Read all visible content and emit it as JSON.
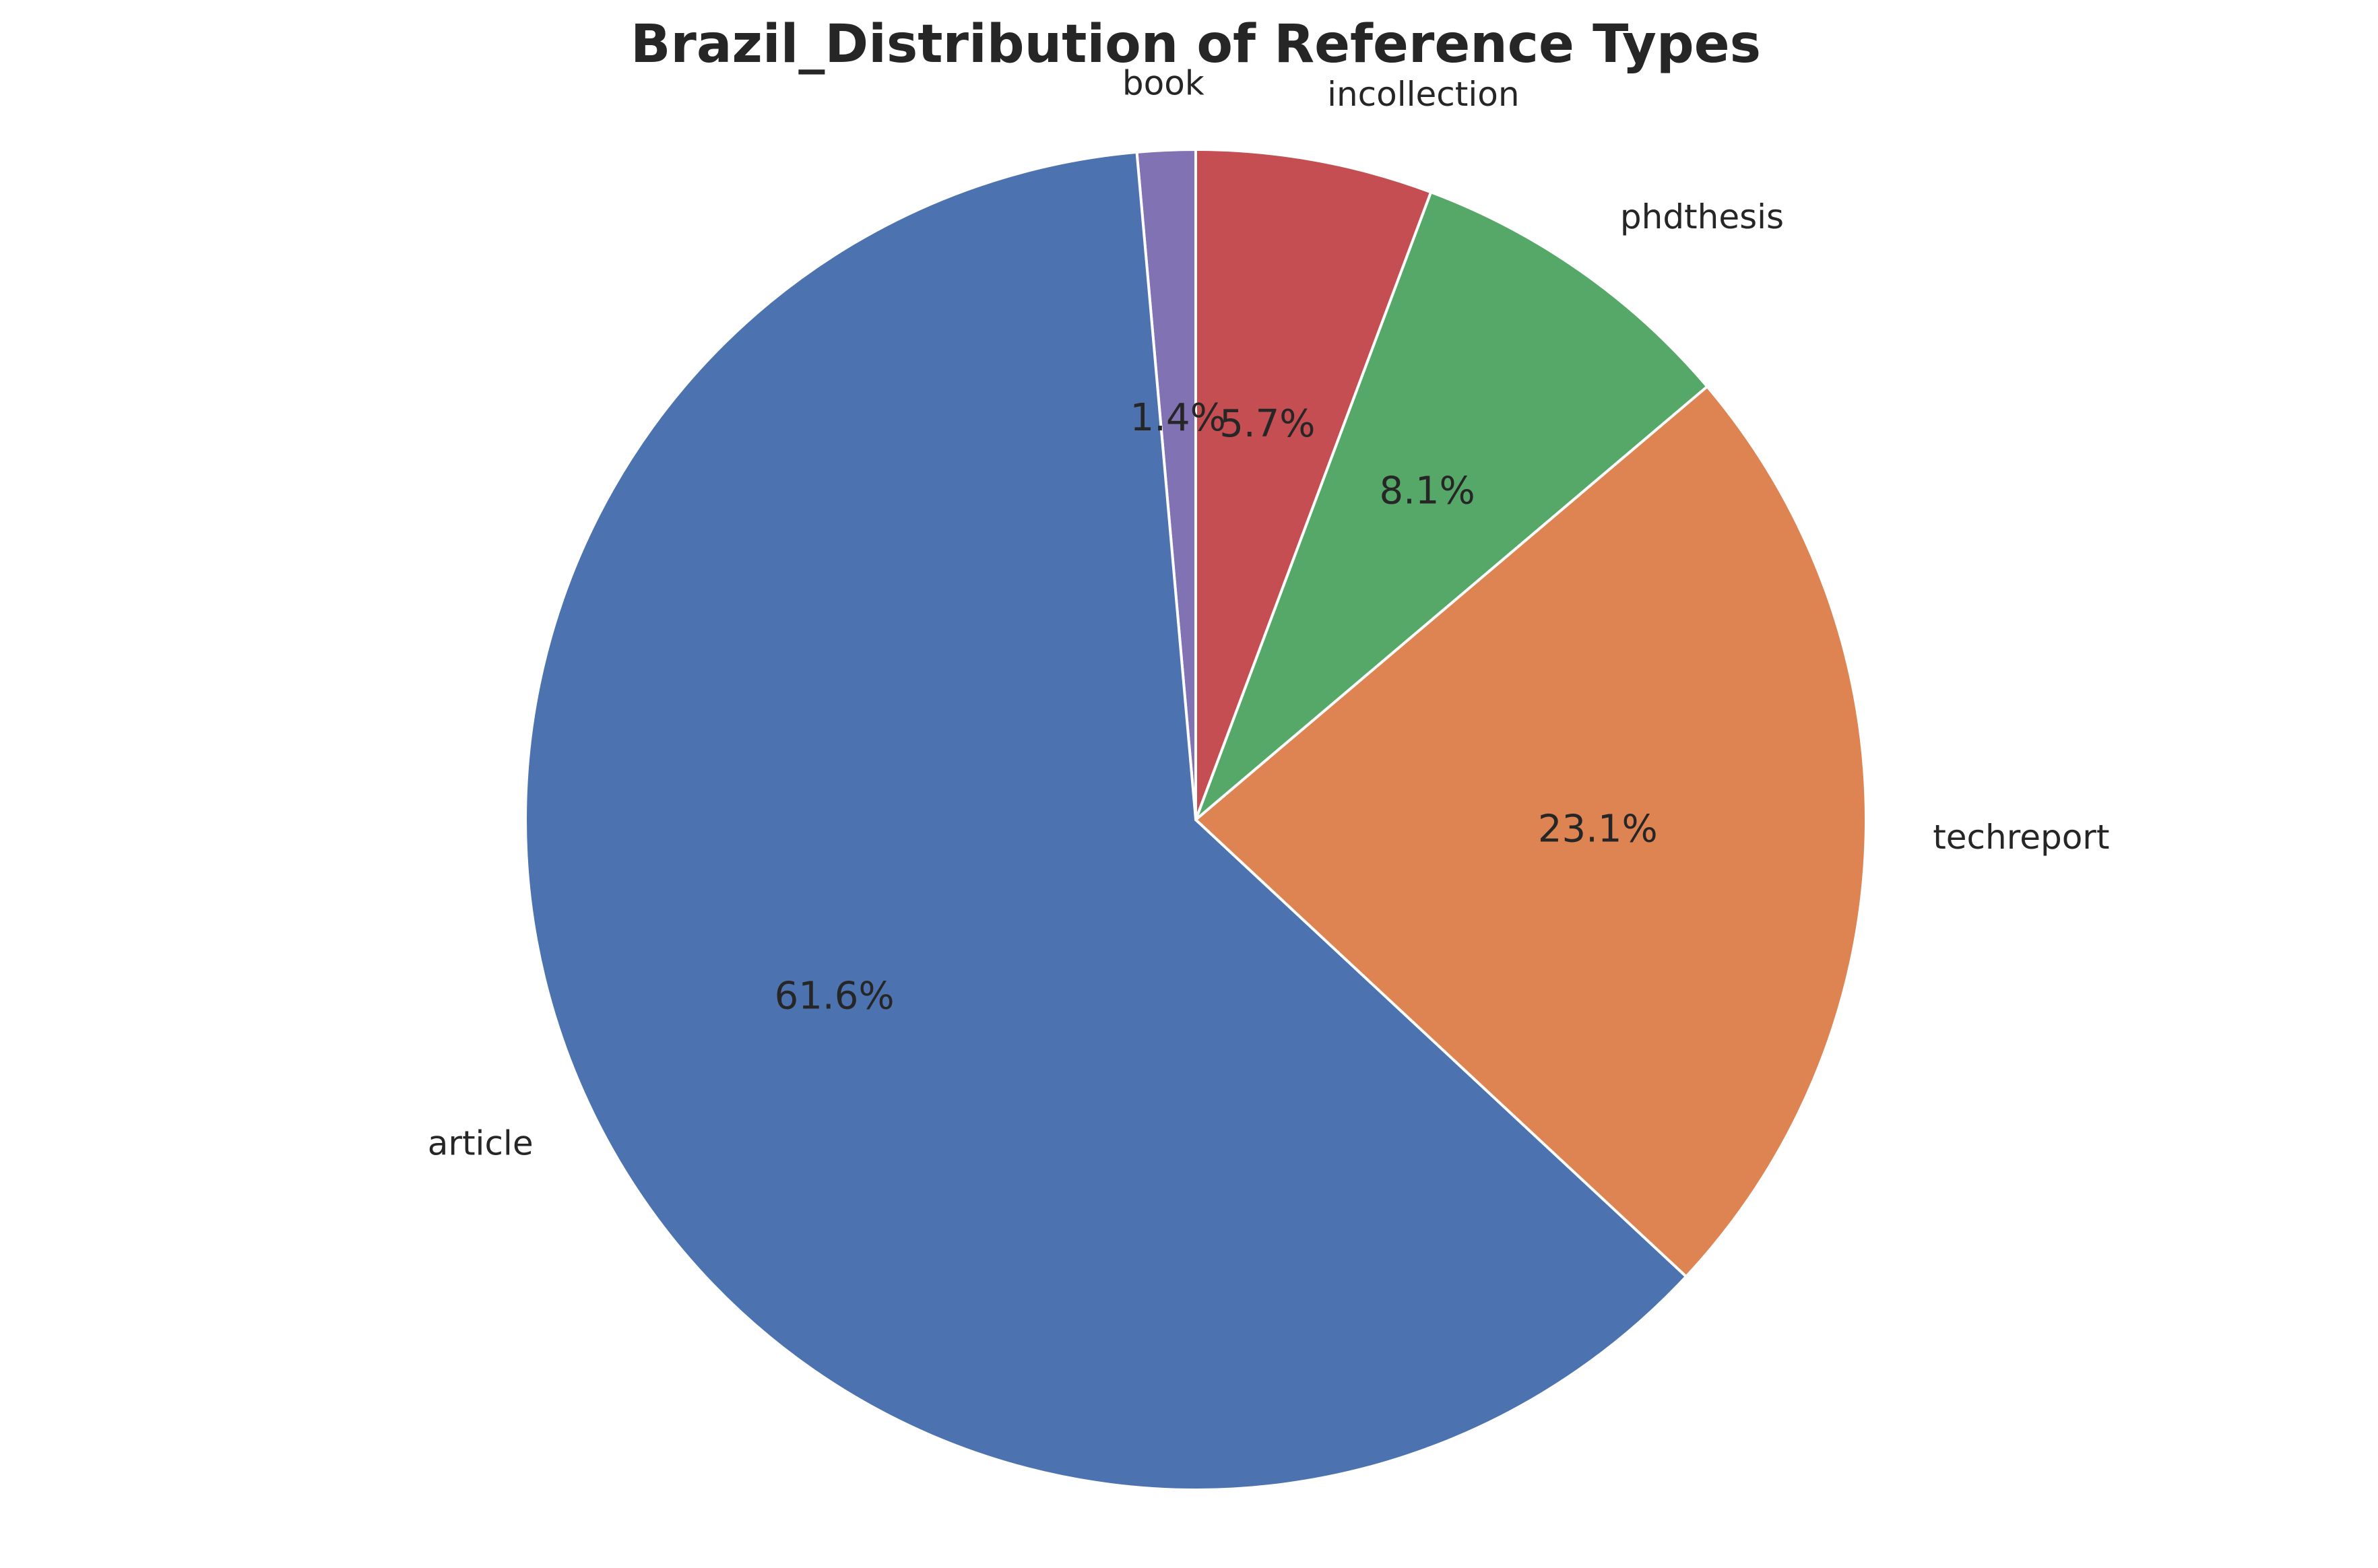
{
  "chart_data": {
    "type": "pie",
    "title": "Brazil_Distribution of Reference Types",
    "start_angle_deg": 90,
    "direction": "counterclockwise",
    "slices": [
      {
        "label": "book",
        "percent": 1.4,
        "percent_label": "1.4%",
        "color": "#8172b3"
      },
      {
        "label": "article",
        "percent": 61.6,
        "percent_label": "61.6%",
        "color": "#4c72b0"
      },
      {
        "label": "techreport",
        "percent": 23.1,
        "percent_label": "23.1%",
        "color": "#dd8452"
      },
      {
        "label": "phdthesis",
        "percent": 8.1,
        "percent_label": "8.1%",
        "color": "#55a868"
      },
      {
        "label": "incollection",
        "percent": 5.7,
        "percent_label": "5.7%",
        "color": "#c44e52"
      }
    ]
  }
}
